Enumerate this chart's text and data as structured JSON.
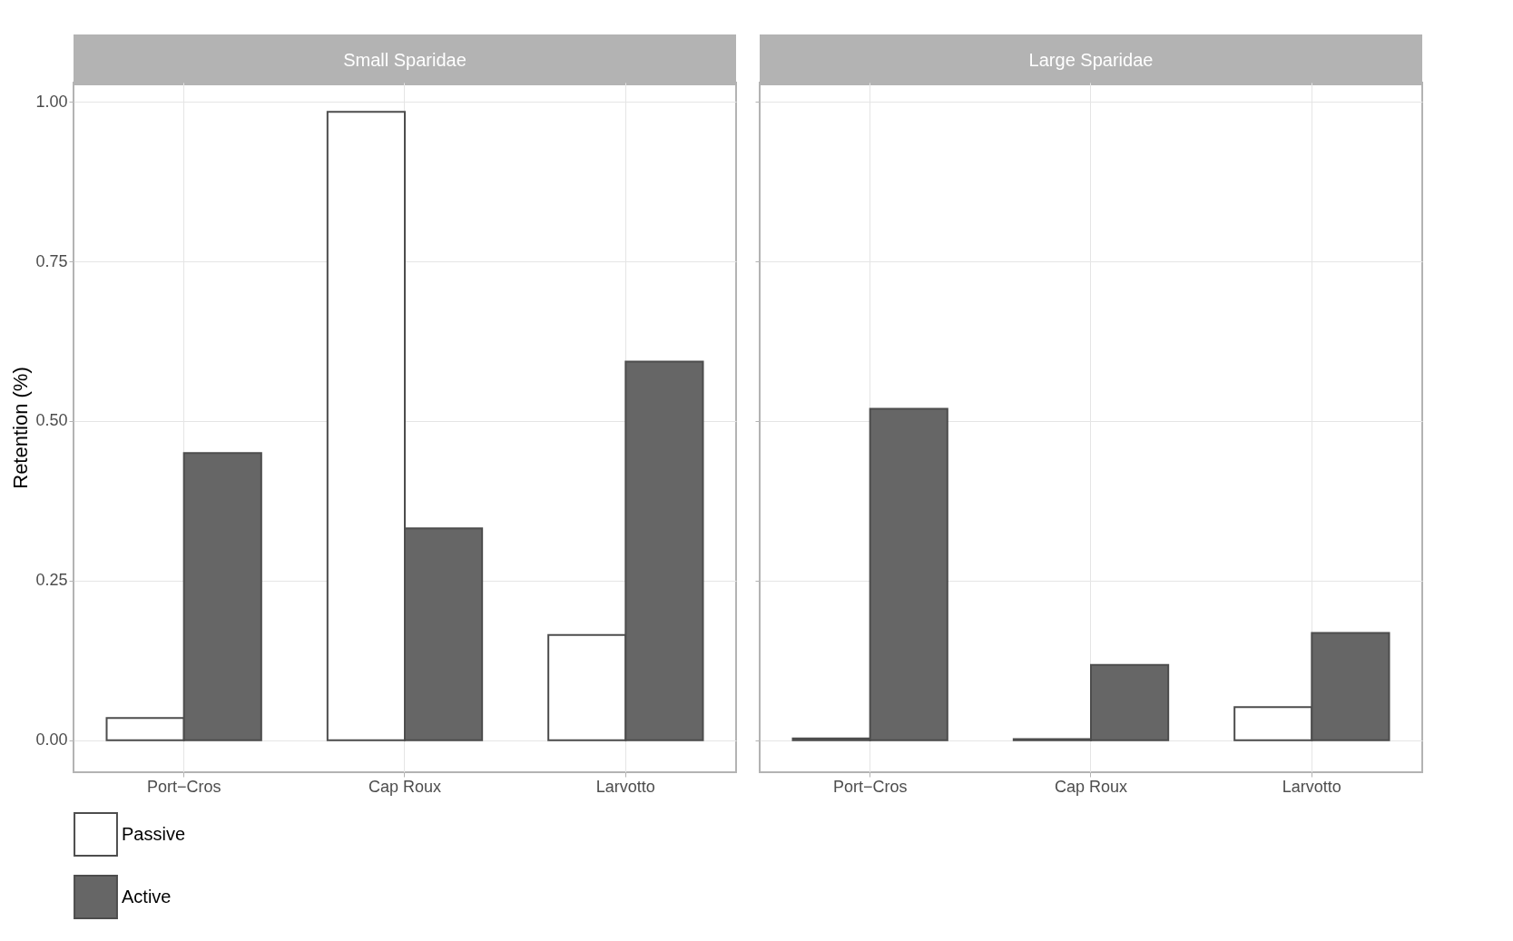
{
  "chart_data": [
    {
      "type": "bar",
      "title": "Small Sparidae",
      "ylabel": "Retention (%)",
      "categories": [
        "Port−Cros",
        "Cap Roux",
        "Larvotto"
      ],
      "series": [
        {
          "name": "Passive",
          "color": "#ffffff",
          "values": [
            0.035,
            0.984,
            0.165
          ]
        },
        {
          "name": "Active",
          "color": "#666666",
          "values": [
            0.45,
            0.332,
            0.593
          ]
        }
      ],
      "ylim": [
        -0.05,
        1.03
      ],
      "yticks": [
        {
          "value": 0,
          "label": "0.00"
        },
        0.25,
        {
          "value": 0.5,
          "label": "0.50"
        },
        0.75,
        {
          "value": 1,
          "label": "1.00"
        }
      ],
      "grid": true,
      "legend": "bottom"
    },
    {
      "type": "bar",
      "title": "Large Sparidae",
      "categories": [
        "Port−Cros",
        "Cap Roux",
        "Larvotto"
      ],
      "series": [
        {
          "name": "Passive",
          "color": "#ffffff",
          "values": [
            0.003,
            0.002,
            0.052
          ]
        },
        {
          "name": "Active",
          "color": "#666666",
          "values": [
            0.519,
            0.118,
            0.168
          ]
        }
      ],
      "ylim": [
        -0.05,
        1.03
      ],
      "yticks": [
        0,
        0.25,
        0.5,
        0.75,
        1
      ],
      "grid": true,
      "tick_labels": "x"
    }
  ]
}
